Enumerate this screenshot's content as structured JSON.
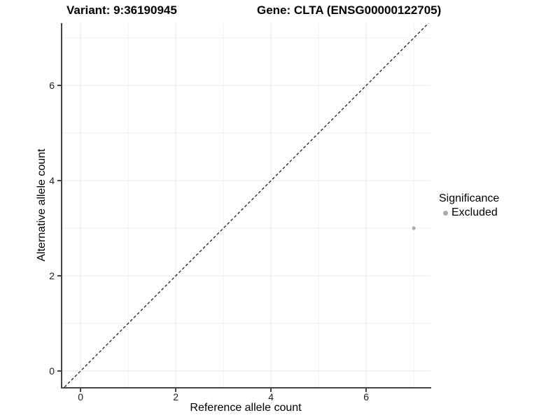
{
  "header": {
    "variant_title": "Variant: 9:36190945",
    "gene_title": "Gene: CLTA (ENSG00000122705)"
  },
  "axes": {
    "x_label": "Reference allele count",
    "y_label": "Alternative allele count",
    "x_ticks": [
      "0",
      "2",
      "4",
      "6"
    ],
    "y_ticks": [
      "0",
      "2",
      "4",
      "6"
    ]
  },
  "legend": {
    "title": "Significance",
    "items": [
      {
        "label": "Excluded",
        "color": "#ababab"
      }
    ]
  },
  "style": {
    "grid_major_color": "#e7e7e7",
    "grid_minor_color": "#f1f1f1",
    "axis_line_color": "#454545",
    "identity_line_color": "#111111",
    "point_color": "#ababab",
    "background": "#ffffff"
  },
  "chart_data": {
    "type": "scatter",
    "title": "Variant: 9:36190945   Gene: CLTA (ENSG00000122705)",
    "xlabel": "Reference allele count",
    "ylabel": "Alternative allele count",
    "xlim": [
      -0.4,
      7.35
    ],
    "ylim": [
      -0.34,
      7.31
    ],
    "x_major_ticks": [
      0,
      2,
      4,
      6
    ],
    "y_major_ticks": [
      0,
      2,
      4,
      6
    ],
    "x_minor_ticks": [
      1,
      3,
      5,
      7
    ],
    "y_minor_ticks": [
      1,
      3,
      5,
      7
    ],
    "grid": true,
    "legend_title": "Significance",
    "legend_position": "right",
    "identity_line": {
      "equation": "y = x",
      "style": "dashed",
      "color": "#111111"
    },
    "series": [
      {
        "name": "Excluded",
        "color": "#ababab",
        "points": [
          {
            "x": 7,
            "y": 3
          }
        ]
      }
    ]
  }
}
